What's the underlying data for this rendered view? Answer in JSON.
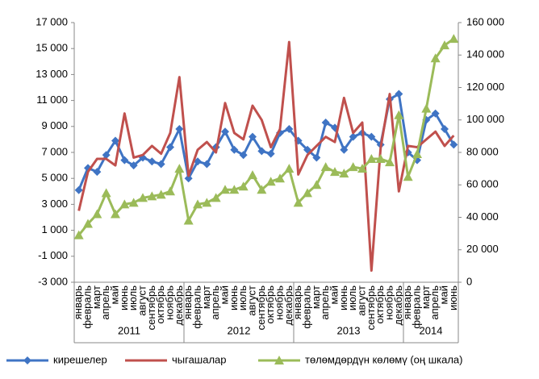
{
  "chart_data": {
    "type": "line",
    "groups": [
      {
        "label": "2011",
        "categories": [
          "январь",
          "февраль",
          "март",
          "апрель",
          "май",
          "июнь",
          "июль",
          "август",
          "сентябрь",
          "октябрь",
          "ноябрь",
          "декабрь"
        ]
      },
      {
        "label": "2012",
        "categories": [
          "январь",
          "февраль",
          "март",
          "апрель",
          "май",
          "июнь",
          "июль",
          "август",
          "сентябрь",
          "октябрь",
          "ноябрь",
          "декабрь"
        ]
      },
      {
        "label": "2013",
        "categories": [
          "январь",
          "февраль",
          "март",
          "апрель",
          "май",
          "июнь",
          "июль",
          "август",
          "сентябрь",
          "октябрь",
          "ноябрь",
          "декабрь"
        ]
      },
      {
        "label": "2014",
        "categories": [
          "январь",
          "февраль",
          "март",
          "апрель",
          "май",
          "июнь"
        ]
      }
    ],
    "series": [
      {
        "name": "кирешелер",
        "color": "#3f74c4",
        "marker": "diamond",
        "values": [
          4100,
          5800,
          5500,
          6800,
          7900,
          6400,
          6000,
          6600,
          6300,
          6100,
          7400,
          8800,
          5000,
          6300,
          6100,
          7400,
          8600,
          7200,
          6800,
          8200,
          7100,
          6900,
          8500,
          8800,
          7900,
          7200,
          6600,
          9300,
          8900,
          7200,
          8200,
          8500,
          8200,
          7600,
          11100,
          11500,
          7000,
          6400,
          9500,
          10000,
          8800,
          7600
        ]
      },
      {
        "name": "чыгашалар",
        "color": "#c0504d",
        "marker": "none",
        "values": [
          2500,
          5500,
          6500,
          6500,
          6000,
          10000,
          6600,
          6800,
          7500,
          6900,
          8500,
          12800,
          5200,
          7200,
          7800,
          7000,
          10800,
          8500,
          8000,
          10600,
          9500,
          7400,
          8800,
          15500,
          5300,
          6800,
          7500,
          8200,
          7800,
          11200,
          8500,
          9300,
          -2100,
          7300,
          11500,
          4000,
          7500,
          7400,
          8000,
          8600,
          7500,
          8300
        ]
      },
      {
        "name": "төлөмдөрдүн көлөмү (оң шкала)",
        "color": "#9bbb59",
        "marker": "triangle",
        "axis": "y2",
        "values": [
          29000,
          36000,
          42000,
          55000,
          42000,
          48000,
          49000,
          52000,
          53000,
          54000,
          56000,
          70000,
          38000,
          48000,
          49000,
          52000,
          57000,
          57000,
          59000,
          66000,
          57000,
          62000,
          64000,
          70000,
          49000,
          55000,
          60000,
          71000,
          68000,
          67000,
          71000,
          70000,
          76000,
          76000,
          74000,
          103000,
          65000,
          79000,
          107000,
          138000,
          146000,
          150000
        ]
      }
    ],
    "ylim": [
      -3000,
      17000
    ],
    "yticks": [
      {
        "value": -3000,
        "label": "-3 000"
      },
      {
        "value": -1000,
        "label": "-1 000"
      },
      {
        "value": 1000,
        "label": "1 000"
      },
      {
        "value": 3000,
        "label": "3 000"
      },
      {
        "value": 5000,
        "label": "5 000"
      },
      {
        "value": 7000,
        "label": "7 000"
      },
      {
        "value": 9000,
        "label": "9 000"
      },
      {
        "value": 11000,
        "label": "11 000"
      },
      {
        "value": 13000,
        "label": "13 000"
      },
      {
        "value": 15000,
        "label": "15 000"
      },
      {
        "value": 17000,
        "label": "17 000"
      }
    ],
    "y2lim": [
      0,
      160000
    ],
    "y2ticks": [
      0,
      {
        "value": 20000,
        "label": "20 000"
      },
      {
        "value": 40000,
        "label": "40 000"
      },
      {
        "value": 60000,
        "label": "60 000"
      },
      {
        "value": 80000,
        "label": "80 000"
      },
      {
        "value": 100000,
        "label": "100 000"
      },
      {
        "value": 120000,
        "label": "120 000"
      },
      {
        "value": 140000,
        "label": "140 000"
      },
      {
        "value": 160000,
        "label": "160 000"
      }
    ],
    "legend": "bottom"
  }
}
